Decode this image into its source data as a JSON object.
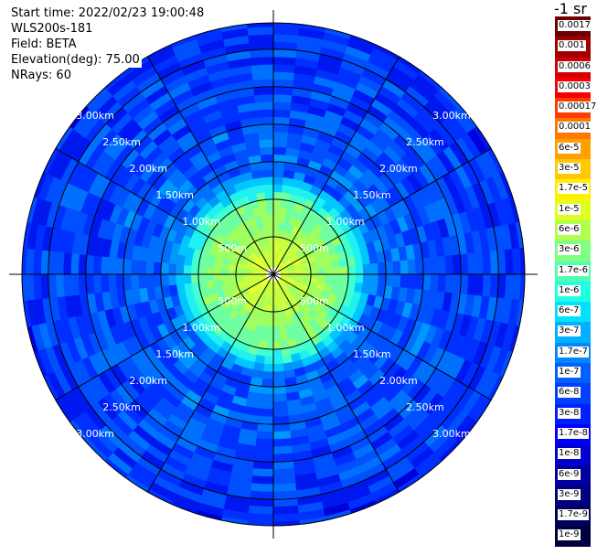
{
  "header": {
    "start_time": "Start time: 2022/02/23 19:00:48",
    "device": "WLS200s-181",
    "field": "Field: BETA",
    "elevation": "Elevation(deg): 75.00",
    "nrays": "NRays: 60"
  },
  "colorbar": {
    "title": "-1 sr",
    "labels": [
      "0.0017",
      "0.001",
      "0.0006",
      "0.0003",
      "0.00017",
      "0.0001",
      "6e-5",
      "3e-5",
      "1.7e-5",
      "1e-5",
      "6e-6",
      "3e-6",
      "1.7e-6",
      "1e-6",
      "6e-7",
      "3e-7",
      "1.7e-7",
      "1e-7",
      "6e-8",
      "3e-8",
      "1.7e-8",
      "1e-8",
      "6e-9",
      "3e-9",
      "1.7e-9",
      "1e-9"
    ],
    "colors": [
      "#6e0000",
      "#a00000",
      "#d40000",
      "#f80000",
      "#ff3c00",
      "#ff7800",
      "#ffa000",
      "#ffc800",
      "#fff000",
      "#e0ff20",
      "#b0ff50",
      "#80ff80",
      "#50ffb0",
      "#20ffe0",
      "#00e0ff",
      "#00b0ff",
      "#0088ff",
      "#0060ff",
      "#0040ff",
      "#0020ff",
      "#0000ff",
      "#0000d0",
      "#0000a0",
      "#000080",
      "#000060",
      "#000040"
    ]
  },
  "polar": {
    "range_labels": [
      "500m",
      "1.00km",
      "1.50km",
      "2.00km",
      "2.50km",
      "3.00km"
    ],
    "range_values_km": [
      0.5,
      1.0,
      1.5,
      2.0,
      2.5,
      3.0
    ],
    "max_range_km": 3.35,
    "radial_lines_deg": [
      0,
      30,
      60,
      90,
      120,
      150,
      180,
      210,
      240,
      270,
      300,
      330
    ],
    "n_rays": 60
  }
}
